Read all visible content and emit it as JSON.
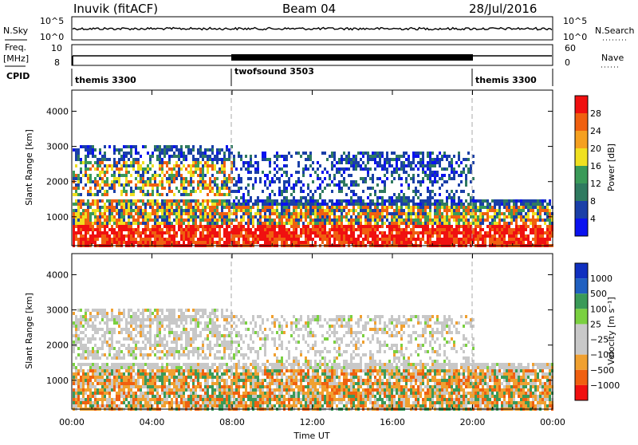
{
  "header": {
    "station": "Inuvik (fitACF)",
    "beam": "Beam 04",
    "date": "28/Jul/2016"
  },
  "strip_labels": {
    "nsky": "N.Sky",
    "nsearch": "N.Search",
    "freq_line1": "Freq.",
    "freq_line2": "[MHz]",
    "nave": "Nave",
    "cpid": "CPID",
    "nsky_ticks": [
      "10^5",
      "10^0"
    ],
    "nsearch_ticks": [
      "10^5",
      "10^0"
    ],
    "freq_ticks": [
      "10",
      "8"
    ],
    "nave_ticks": [
      "60",
      "0"
    ]
  },
  "cpid_segments": [
    {
      "label": "themis 3300",
      "start_h": 0,
      "end_h": 8
    },
    {
      "label": "twofsound 3503",
      "start_h": 8,
      "end_h": 20
    },
    {
      "label": "themis 3300",
      "start_h": 20,
      "end_h": 24
    }
  ],
  "colors": {
    "power": [
      "#0a12f0",
      "#1a3fa8",
      "#2f7a60",
      "#3a9a58",
      "#f0e020",
      "#f5a020",
      "#f06010",
      "#f01010"
    ],
    "velocity": [
      "#f01010",
      "#f06010",
      "#f0a030",
      "#c8c8c8",
      "#c8c8c8",
      "#7ad040",
      "#3a9a58",
      "#2060c0",
      "#1030c0"
    ]
  },
  "chart_data": [
    {
      "type": "heatmap",
      "name": "power",
      "ylabel": "Slant Range [km]",
      "yticks": [
        1000,
        2000,
        3000,
        4000
      ],
      "ylim": [
        180,
        4600
      ],
      "xticks": [
        "00:00",
        "04:00",
        "08:00",
        "12:00",
        "16:00",
        "20:00",
        "00:00"
      ],
      "xlim_hours": [
        0,
        24
      ],
      "colorbar": {
        "label": "Power [dB]",
        "ticks": [
          "4",
          "8",
          "12",
          "16",
          "20",
          "24",
          "28"
        ],
        "range": [
          0,
          32
        ]
      }
    },
    {
      "type": "heatmap",
      "name": "velocity",
      "ylabel": "Slant Range [km]",
      "yticks": [
        1000,
        2000,
        3000,
        4000
      ],
      "ylim": [
        180,
        4600
      ],
      "xticks": [
        "00:00",
        "04:00",
        "08:00",
        "12:00",
        "16:00",
        "20:00",
        "00:00"
      ],
      "xlim_hours": [
        0,
        24
      ],
      "xlabel": "Time UT",
      "colorbar": {
        "label": "Velocity [m s⁻¹]",
        "ticks": [
          "1000",
          "500",
          "100",
          "25",
          "−25",
          "−100",
          "−500",
          "−1000"
        ]
      }
    }
  ]
}
